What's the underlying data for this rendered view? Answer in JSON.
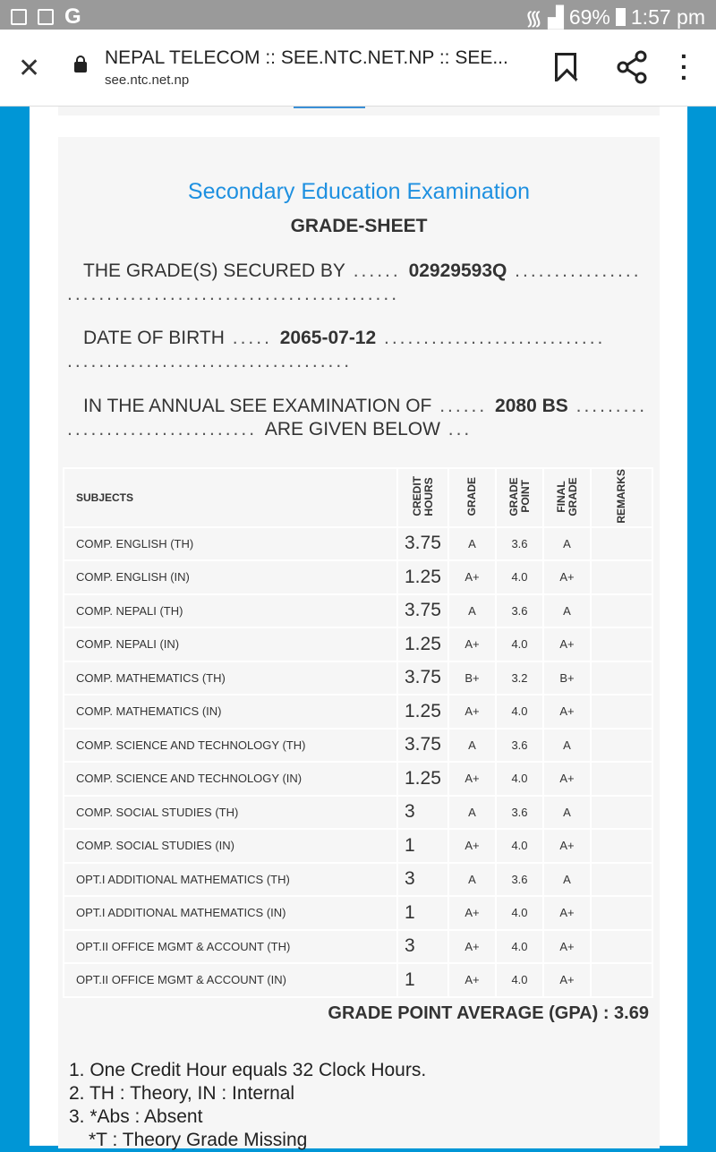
{
  "status_bar": {
    "battery": "69%",
    "time": "1:57 pm",
    "left_icons": [
      "gallery-icon",
      "calendar-icon",
      "google-icon"
    ]
  },
  "browser": {
    "title": "NEPAL TELECOM :: SEE.NTC.NET.NP :: SEE...",
    "url": "see.ntc.net.np",
    "google_glyph": "G"
  },
  "sheet": {
    "heading": "Secondary Education Examination",
    "subheading": "GRADE-SHEET",
    "secured_by_label": "THE GRADE(S) SECURED BY",
    "symbol_no": "02929593Q",
    "dob_label": "DATE OF BIRTH",
    "dob": "2065-07-12",
    "exam_label": "IN THE ANNUAL SEE EXAMINATION OF",
    "exam_year": "2080 BS",
    "given_below": "ARE GIVEN BELOW"
  },
  "table": {
    "headers": {
      "subjects": "SUBJECTS",
      "credit_hours": "CREDIT HOURS",
      "grade": "GRADE",
      "grade_point": "GRADE POINT",
      "final_grade": "FINAL GRADE",
      "remarks": "REMARKS"
    },
    "rows": [
      {
        "subject": "COMP. ENGLISH (TH)",
        "credit": "3.75",
        "grade": "A",
        "point": "3.6",
        "final": "A"
      },
      {
        "subject": "COMP. ENGLISH (IN)",
        "credit": "1.25",
        "grade": "A+",
        "point": "4.0",
        "final": "A+"
      },
      {
        "subject": "COMP. NEPALI (TH)",
        "credit": "3.75",
        "grade": "A",
        "point": "3.6",
        "final": "A"
      },
      {
        "subject": "COMP. NEPALI (IN)",
        "credit": "1.25",
        "grade": "A+",
        "point": "4.0",
        "final": "A+"
      },
      {
        "subject": "COMP. MATHEMATICS (TH)",
        "credit": "3.75",
        "grade": "B+",
        "point": "3.2",
        "final": "B+"
      },
      {
        "subject": "COMP. MATHEMATICS (IN)",
        "credit": "1.25",
        "grade": "A+",
        "point": "4.0",
        "final": "A+"
      },
      {
        "subject": "COMP. SCIENCE AND TECHNOLOGY (TH)",
        "credit": "3.75",
        "grade": "A",
        "point": "3.6",
        "final": "A"
      },
      {
        "subject": "COMP. SCIENCE AND TECHNOLOGY (IN)",
        "credit": "1.25",
        "grade": "A+",
        "point": "4.0",
        "final": "A+"
      },
      {
        "subject": "COMP. SOCIAL STUDIES (TH)",
        "credit": "3",
        "grade": "A",
        "point": "3.6",
        "final": "A"
      },
      {
        "subject": "COMP. SOCIAL STUDIES (IN)",
        "credit": "1",
        "grade": "A+",
        "point": "4.0",
        "final": "A+"
      },
      {
        "subject": "OPT.I ADDITIONAL MATHEMATICS (TH)",
        "credit": "3",
        "grade": "A",
        "point": "3.6",
        "final": "A"
      },
      {
        "subject": "OPT.I ADDITIONAL MATHEMATICS (IN)",
        "credit": "1",
        "grade": "A+",
        "point": "4.0",
        "final": "A+"
      },
      {
        "subject": "OPT.II OFFICE MGMT & ACCOUNT (TH)",
        "credit": "3",
        "grade": "A+",
        "point": "4.0",
        "final": "A+"
      },
      {
        "subject": "OPT.II OFFICE MGMT & ACCOUNT (IN)",
        "credit": "1",
        "grade": "A+",
        "point": "4.0",
        "final": "A+"
      }
    ]
  },
  "gpa": "GRADE POINT AVERAGE (GPA) : 3.69",
  "notes": [
    "1. One Credit Hour equals 32 Clock Hours.",
    "2. TH : Theory, IN : Internal",
    "3. *Abs : Absent",
    "*T : Theory Grade Missing"
  ]
}
